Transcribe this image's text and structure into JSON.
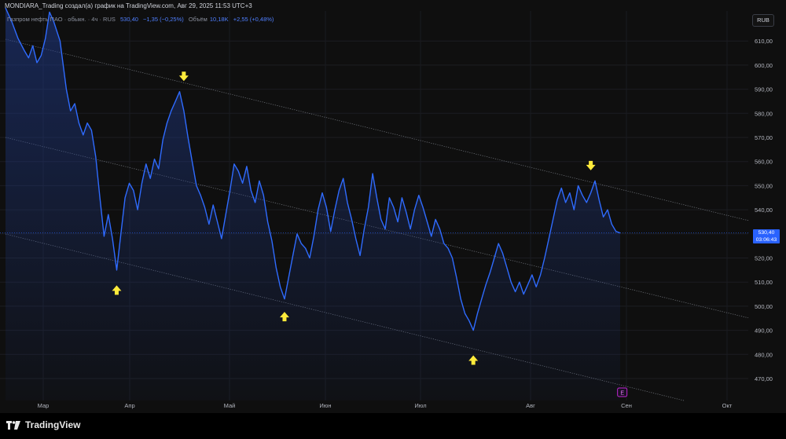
{
  "header": {
    "title": "MONDIARA_Trading создал(а) график на TradingView.com, Авг 29, 2025 11:53 UTC+3"
  },
  "legend": {
    "symbol": "Газпром нефть ПАО · обыкн. · 4ч · RUS",
    "price": "530,40",
    "change": "−1,35 (−0,25%)",
    "volume_label": "Объём",
    "volume": "10,18K",
    "volume_change": "+2,55 (+0,48%)"
  },
  "currency": "RUB",
  "last_price": {
    "value": "530,40",
    "timer": "03:06:43"
  },
  "footer": {
    "brand": "TradingView"
  },
  "colors": {
    "line": "#2f6bff",
    "arrow": "#ffeb3b",
    "channel": "#9aa0aa",
    "price_tag": "#2962ff"
  },
  "chart_data": {
    "type": "line",
    "x_ticks": [
      "Мар",
      "Апр",
      "Май",
      "Июн",
      "Июл",
      "Авг",
      "Сен",
      "Окт"
    ],
    "y_ticks": [
      "470,00",
      "480,00",
      "490,00",
      "500,00",
      "510,00",
      "520,00",
      "530,00",
      "540,00",
      "550,00",
      "560,00",
      "570,00",
      "580,00",
      "590,00",
      "600,00",
      "610,00"
    ],
    "ylim": [
      465,
      618
    ],
    "last_value": 530.4,
    "series": [
      {
        "values": [
          [
            0,
            625
          ],
          [
            3,
            618
          ],
          [
            6,
            611
          ],
          [
            9,
            606
          ],
          [
            11,
            603
          ],
          [
            13,
            608
          ],
          [
            15,
            601
          ],
          [
            17,
            604
          ],
          [
            19,
            611
          ],
          [
            21,
            622
          ],
          [
            23,
            618
          ],
          [
            26,
            610
          ],
          [
            29,
            590
          ],
          [
            31,
            581
          ],
          [
            33,
            584
          ],
          [
            35,
            576
          ],
          [
            37,
            571
          ],
          [
            39,
            576
          ],
          [
            41,
            573
          ],
          [
            43,
            562
          ],
          [
            45,
            545
          ],
          [
            47,
            529
          ],
          [
            49,
            538
          ],
          [
            51,
            528
          ],
          [
            53,
            515
          ],
          [
            55,
            530
          ],
          [
            57,
            545
          ],
          [
            59,
            551
          ],
          [
            61,
            548
          ],
          [
            63,
            540
          ],
          [
            65,
            551
          ],
          [
            67,
            559
          ],
          [
            69,
            553
          ],
          [
            71,
            561
          ],
          [
            73,
            557
          ],
          [
            75,
            569
          ],
          [
            77,
            576
          ],
          [
            79,
            581
          ],
          [
            81,
            585
          ],
          [
            83,
            589
          ],
          [
            85,
            581
          ],
          [
            87,
            570
          ],
          [
            89,
            560
          ],
          [
            91,
            550
          ],
          [
            93,
            546
          ],
          [
            95,
            541
          ],
          [
            97,
            534
          ],
          [
            99,
            542
          ],
          [
            101,
            535
          ],
          [
            103,
            528
          ],
          [
            105,
            538
          ],
          [
            107,
            548
          ],
          [
            109,
            559
          ],
          [
            111,
            556
          ],
          [
            113,
            551
          ],
          [
            115,
            558
          ],
          [
            117,
            548
          ],
          [
            119,
            543
          ],
          [
            121,
            552
          ],
          [
            123,
            546
          ],
          [
            125,
            535
          ],
          [
            127,
            527
          ],
          [
            129,
            516
          ],
          [
            131,
            508
          ],
          [
            133,
            503
          ],
          [
            135,
            512
          ],
          [
            137,
            521
          ],
          [
            139,
            530
          ],
          [
            141,
            526
          ],
          [
            143,
            524
          ],
          [
            145,
            520
          ],
          [
            147,
            529
          ],
          [
            149,
            540
          ],
          [
            151,
            547
          ],
          [
            153,
            541
          ],
          [
            155,
            531
          ],
          [
            157,
            540
          ],
          [
            159,
            548
          ],
          [
            161,
            553
          ],
          [
            163,
            543
          ],
          [
            165,
            536
          ],
          [
            167,
            528
          ],
          [
            169,
            521
          ],
          [
            171,
            532
          ],
          [
            173,
            541
          ],
          [
            175,
            555
          ],
          [
            177,
            545
          ],
          [
            179,
            536
          ],
          [
            181,
            532
          ],
          [
            183,
            545
          ],
          [
            185,
            541
          ],
          [
            187,
            535
          ],
          [
            189,
            545
          ],
          [
            191,
            539
          ],
          [
            193,
            532
          ],
          [
            195,
            540
          ],
          [
            197,
            546
          ],
          [
            199,
            541
          ],
          [
            201,
            535
          ],
          [
            203,
            529
          ],
          [
            205,
            536
          ],
          [
            207,
            532
          ],
          [
            209,
            526
          ],
          [
            211,
            524
          ],
          [
            213,
            520
          ],
          [
            215,
            512
          ],
          [
            217,
            503
          ],
          [
            219,
            497
          ],
          [
            221,
            494
          ],
          [
            223,
            490
          ],
          [
            225,
            497
          ],
          [
            227,
            503
          ],
          [
            229,
            509
          ],
          [
            231,
            514
          ],
          [
            233,
            520
          ],
          [
            235,
            526
          ],
          [
            237,
            522
          ],
          [
            239,
            516
          ],
          [
            241,
            510
          ],
          [
            243,
            506
          ],
          [
            245,
            510
          ],
          [
            247,
            505
          ],
          [
            249,
            509
          ],
          [
            251,
            513
          ],
          [
            253,
            508
          ],
          [
            255,
            513
          ],
          [
            257,
            520
          ],
          [
            259,
            528
          ],
          [
            261,
            536
          ],
          [
            263,
            544
          ],
          [
            265,
            549
          ],
          [
            267,
            543
          ],
          [
            269,
            547
          ],
          [
            271,
            540
          ],
          [
            273,
            550
          ],
          [
            275,
            546
          ],
          [
            277,
            543
          ],
          [
            279,
            547
          ],
          [
            281,
            552
          ],
          [
            283,
            544
          ],
          [
            285,
            537
          ],
          [
            287,
            540
          ],
          [
            289,
            534
          ],
          [
            291,
            531
          ],
          [
            293,
            530.4
          ]
        ]
      }
    ],
    "annotations": [
      {
        "type": "arrow-down",
        "t": 85,
        "value": 595
      },
      {
        "type": "arrow-up",
        "t": 53,
        "value": 507
      },
      {
        "type": "arrow-up",
        "t": 133,
        "value": 496
      },
      {
        "type": "arrow-up",
        "t": 223,
        "value": 478
      },
      {
        "type": "arrow-down",
        "t": 279,
        "value": 558
      }
    ],
    "events": [
      {
        "type": "earnings",
        "label": "E",
        "t": 294
      }
    ]
  }
}
